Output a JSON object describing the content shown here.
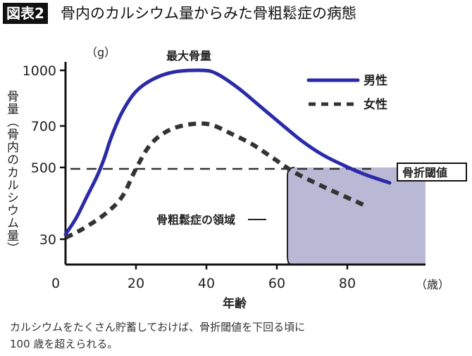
{
  "header": {
    "badge": "図表2",
    "title": "骨内のカルシウム量からみた骨粗鬆症の病態"
  },
  "caption": [
    "カルシウムをたくさん貯蓄しておけば、骨折閾値を下回る頃に",
    "100 歳を超えられる。"
  ],
  "chart_data": {
    "type": "line",
    "title": "骨内のカルシウム量からみた骨粗鬆症の病態",
    "xlabel": "年齢",
    "x_unit": "（歳）",
    "ylabel": "骨量（骨内のカルシウム量）",
    "y_unit": "（g）",
    "x_ticks": [
      0,
      20,
      40,
      60,
      80
    ],
    "y_ticks": [
      30,
      500,
      700,
      1000
    ],
    "y_scale": "non-linear (schematic)",
    "grid": false,
    "legend_position": "top-right",
    "series": [
      {
        "name": "男性",
        "style": "solid",
        "color": "#2b2ba8",
        "x": [
          0,
          3,
          6,
          9,
          11,
          13,
          16,
          20,
          25,
          31,
          39,
          43,
          49,
          55,
          61,
          67,
          73,
          79,
          85,
          92
        ],
        "y": [
          62,
          168,
          306,
          445,
          544,
          646,
          772,
          886,
          954,
          992,
          1000,
          981,
          905,
          810,
          714,
          629,
          561,
          510,
          454,
          399
        ]
      },
      {
        "name": "女性",
        "style": "dashed",
        "color": "#333333",
        "x": [
          0,
          5,
          11,
          16,
          20,
          24,
          29,
          35,
          41,
          47,
          53,
          59,
          65,
          73,
          85
        ],
        "y": [
          39,
          99,
          191,
          306,
          491,
          608,
          676,
          708,
          708,
          663,
          612,
          544,
          468,
          376,
          251
        ]
      }
    ],
    "threshold": {
      "label": "骨折閾値",
      "value": 500
    },
    "region": {
      "label": "骨粗鬆症の領域",
      "x_from": 63,
      "color": "#b9b9d6"
    },
    "annotations": [
      {
        "text": "最大骨量",
        "x": 40,
        "y": 1000
      }
    ]
  }
}
